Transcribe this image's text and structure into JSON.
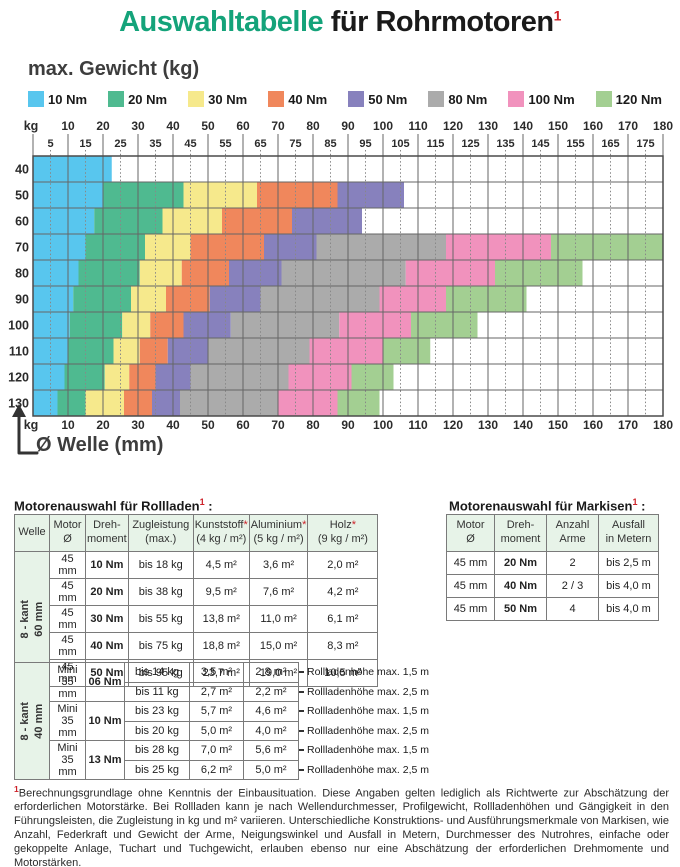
{
  "title": {
    "green": "Auswahltabelle",
    "rest": " für Rohrmotoren",
    "sup": "1"
  },
  "chart_data": {
    "type": "heatmap",
    "title": "max. Gewicht (kg)",
    "xlabel": "Ø Welle (mm)",
    "axis_unit_label": "kg",
    "x_range": [
      0,
      180
    ],
    "x_major_ticks": [
      10,
      20,
      30,
      40,
      50,
      60,
      70,
      80,
      90,
      100,
      110,
      120,
      130,
      140,
      150,
      160,
      170,
      180
    ],
    "x_minor_ticks": [
      5,
      15,
      25,
      35,
      45,
      55,
      65,
      75,
      85,
      95,
      105,
      115,
      125,
      135,
      145,
      155,
      165,
      175
    ],
    "y_rows_kg": [
      40,
      50,
      60,
      70,
      80,
      90,
      100,
      110,
      120,
      130
    ],
    "grid": "on",
    "legend_position": "top",
    "legend": [
      {
        "label": "10 Nm",
        "color": "#58c6ee"
      },
      {
        "label": "20 Nm",
        "color": "#4fba90"
      },
      {
        "label": "30 Nm",
        "color": "#f6e98c"
      },
      {
        "label": "40 Nm",
        "color": "#f0875c"
      },
      {
        "label": "50 Nm",
        "color": "#8781bd"
      },
      {
        "label": "80 Nm",
        "color": "#ababab"
      },
      {
        "label": "100 Nm",
        "color": "#f192bd"
      },
      {
        "label": "120 Nm",
        "color": "#a3cf92"
      }
    ],
    "rows": [
      {
        "kg": 40,
        "segments": [
          {
            "torque": "10 Nm",
            "from": 0,
            "to": 22.5
          }
        ]
      },
      {
        "kg": 50,
        "segments": [
          {
            "torque": "10 Nm",
            "from": 0,
            "to": 20
          },
          {
            "torque": "20 Nm",
            "from": 20,
            "to": 43
          },
          {
            "torque": "30 Nm",
            "from": 43,
            "to": 64
          },
          {
            "torque": "40 Nm",
            "from": 64,
            "to": 87
          },
          {
            "torque": "50 Nm",
            "from": 87,
            "to": 106
          }
        ]
      },
      {
        "kg": 60,
        "segments": [
          {
            "torque": "10 Nm",
            "from": 0,
            "to": 17.5
          },
          {
            "torque": "20 Nm",
            "from": 17.5,
            "to": 37
          },
          {
            "torque": "30 Nm",
            "from": 37,
            "to": 54
          },
          {
            "torque": "40 Nm",
            "from": 54,
            "to": 74
          },
          {
            "torque": "50 Nm",
            "from": 74,
            "to": 94
          }
        ]
      },
      {
        "kg": 70,
        "segments": [
          {
            "torque": "10 Nm",
            "from": 0,
            "to": 15
          },
          {
            "torque": "20 Nm",
            "from": 15,
            "to": 32
          },
          {
            "torque": "30 Nm",
            "from": 32,
            "to": 45
          },
          {
            "torque": "40 Nm",
            "from": 45,
            "to": 66
          },
          {
            "torque": "50 Nm",
            "from": 66,
            "to": 81
          },
          {
            "torque": "80 Nm",
            "from": 81,
            "to": 118
          },
          {
            "torque": "100 Nm",
            "from": 118,
            "to": 148
          },
          {
            "torque": "120 Nm",
            "from": 148,
            "to": 180
          }
        ]
      },
      {
        "kg": 80,
        "segments": [
          {
            "torque": "10 Nm",
            "from": 0,
            "to": 13
          },
          {
            "torque": "20 Nm",
            "from": 13,
            "to": 30.5
          },
          {
            "torque": "30 Nm",
            "from": 30.5,
            "to": 42.5
          },
          {
            "torque": "40 Nm",
            "from": 42.5,
            "to": 56
          },
          {
            "torque": "50 Nm",
            "from": 56,
            "to": 71
          },
          {
            "torque": "80 Nm",
            "from": 71,
            "to": 106.5
          },
          {
            "torque": "100 Nm",
            "from": 106.5,
            "to": 132
          },
          {
            "torque": "120 Nm",
            "from": 132,
            "to": 157
          }
        ]
      },
      {
        "kg": 90,
        "segments": [
          {
            "torque": "10 Nm",
            "from": 0,
            "to": 11.5
          },
          {
            "torque": "20 Nm",
            "from": 11.5,
            "to": 28
          },
          {
            "torque": "30 Nm",
            "from": 28,
            "to": 38
          },
          {
            "torque": "40 Nm",
            "from": 38,
            "to": 50.5
          },
          {
            "torque": "50 Nm",
            "from": 50.5,
            "to": 65
          },
          {
            "torque": "80 Nm",
            "from": 65,
            "to": 99
          },
          {
            "torque": "100 Nm",
            "from": 99,
            "to": 118
          },
          {
            "torque": "120 Nm",
            "from": 118,
            "to": 141
          }
        ]
      },
      {
        "kg": 100,
        "segments": [
          {
            "torque": "10 Nm",
            "from": 0,
            "to": 10.5
          },
          {
            "torque": "20 Nm",
            "from": 10.5,
            "to": 25.5
          },
          {
            "torque": "30 Nm",
            "from": 25.5,
            "to": 33.5
          },
          {
            "torque": "40 Nm",
            "from": 33.5,
            "to": 43
          },
          {
            "torque": "50 Nm",
            "from": 43,
            "to": 56.5
          },
          {
            "torque": "80 Nm",
            "from": 56.5,
            "to": 87.5
          },
          {
            "torque": "100 Nm",
            "from": 87.5,
            "to": 108
          },
          {
            "torque": "120 Nm",
            "from": 108,
            "to": 127
          }
        ]
      },
      {
        "kg": 110,
        "segments": [
          {
            "torque": "10 Nm",
            "from": 0,
            "to": 10
          },
          {
            "torque": "20 Nm",
            "from": 10,
            "to": 23
          },
          {
            "torque": "30 Nm",
            "from": 23,
            "to": 30.5
          },
          {
            "torque": "40 Nm",
            "from": 30.5,
            "to": 38.5
          },
          {
            "torque": "50 Nm",
            "from": 38.5,
            "to": 50
          },
          {
            "torque": "80 Nm",
            "from": 50,
            "to": 79
          },
          {
            "torque": "100 Nm",
            "from": 79,
            "to": 100
          },
          {
            "torque": "120 Nm",
            "from": 100,
            "to": 113.5
          }
        ]
      },
      {
        "kg": 120,
        "segments": [
          {
            "torque": "10 Nm",
            "from": 0,
            "to": 9
          },
          {
            "torque": "20 Nm",
            "from": 9,
            "to": 20.5
          },
          {
            "torque": "30 Nm",
            "from": 20.5,
            "to": 27.5
          },
          {
            "torque": "40 Nm",
            "from": 27.5,
            "to": 35
          },
          {
            "torque": "50 Nm",
            "from": 35,
            "to": 45
          },
          {
            "torque": "80 Nm",
            "from": 45,
            "to": 73
          },
          {
            "torque": "100 Nm",
            "from": 73,
            "to": 91
          },
          {
            "torque": "120 Nm",
            "from": 91,
            "to": 103
          }
        ]
      },
      {
        "kg": 130,
        "segments": [
          {
            "torque": "10 Nm",
            "from": 0,
            "to": 7
          },
          {
            "torque": "20 Nm",
            "from": 7,
            "to": 15
          },
          {
            "torque": "30 Nm",
            "from": 15,
            "to": 26
          },
          {
            "torque": "40 Nm",
            "from": 26,
            "to": 34
          },
          {
            "torque": "50 Nm",
            "from": 34,
            "to": 42
          },
          {
            "torque": "80 Nm",
            "from": 42,
            "to": 70
          },
          {
            "torque": "100 Nm",
            "from": 70,
            "to": 87
          },
          {
            "torque": "120 Nm",
            "from": 87,
            "to": 99
          }
        ]
      }
    ]
  },
  "rollladen": {
    "title": "Motorenauswahl für Rollladen",
    "title_sup": "1",
    "title_suffix": " :",
    "headers": [
      [
        "Welle"
      ],
      [
        "Motor",
        "Ø"
      ],
      [
        "Dreh-",
        "moment"
      ],
      [
        "Zugleistung",
        "(max.)"
      ],
      [
        "Kunststoff*",
        "(4 kg / m²)"
      ],
      [
        "Aluminium*",
        "(5 kg / m²)"
      ],
      [
        "Holz*",
        "(9 kg / m²)"
      ]
    ],
    "section_60": {
      "welle": [
        "8 - kant",
        "60 mm"
      ],
      "rows": [
        [
          "45 mm",
          "10 Nm",
          "bis 18 kg",
          "4,5 m²",
          "3,6 m²",
          "2,0 m²"
        ],
        [
          "45 mm",
          "20 Nm",
          "bis 38 kg",
          "9,5 m²",
          "7,6 m²",
          "4,2 m²"
        ],
        [
          "45 mm",
          "30 Nm",
          "bis 55 kg",
          "13,8 m²",
          "11,0 m²",
          "6,1 m²"
        ],
        [
          "45 mm",
          "40 Nm",
          "bis 75 kg",
          "18,8 m²",
          "15,0 m²",
          "8,3 m²"
        ],
        [
          "45 mm",
          "50 Nm",
          "bis 95 kg",
          "23,7 m²",
          "19,0 m²",
          "10,5 m²"
        ]
      ]
    },
    "section_40": {
      "welle": [
        "8 - kant",
        "40 mm"
      ],
      "groups": [
        {
          "motor": [
            "Mini",
            "35 mm"
          ],
          "torque": "06 Nm",
          "rows": [
            [
              "bis 14 kg",
              "3,5 m²",
              "2,8 m²",
              "Rollladenhöhe max. 1,5 m"
            ],
            [
              "bis 11 kg",
              "2,7 m²",
              "2,2 m²",
              "Rollladenhöhe max. 2,5 m"
            ]
          ]
        },
        {
          "motor": [
            "Mini",
            "35 mm"
          ],
          "torque": "10 Nm",
          "rows": [
            [
              "bis 23 kg",
              "5,7 m²",
              "4,6 m²",
              "Rollladenhöhe max. 1,5 m"
            ],
            [
              "bis 20 kg",
              "5,0 m²",
              "4,0 m²",
              "Rollladenhöhe max. 2,5 m"
            ]
          ]
        },
        {
          "motor": [
            "Mini",
            "35 mm"
          ],
          "torque": "13 Nm",
          "rows": [
            [
              "bis 28 kg",
              "7,0 m²",
              "5,6 m²",
              "Rollladenhöhe max. 1,5 m"
            ],
            [
              "bis 25 kg",
              "6,2 m²",
              "5,0 m²",
              "Rollladenhöhe max. 2,5 m"
            ]
          ]
        }
      ]
    }
  },
  "markisen": {
    "title": "Motorenauswahl für Markisen",
    "title_sup": "1",
    "title_suffix": " :",
    "headers": [
      [
        "Motor",
        "Ø"
      ],
      [
        "Dreh-",
        "moment"
      ],
      [
        "Anzahl",
        "Arme"
      ],
      [
        "Ausfall",
        "in Metern"
      ]
    ],
    "rows": [
      [
        "45 mm",
        "20 Nm",
        "2",
        "bis 2,5 m"
      ],
      [
        "45 mm",
        "40 Nm",
        "2 / 3",
        "bis 4,0 m"
      ],
      [
        "45 mm",
        "50 Nm",
        "4",
        "bis 4,0 m"
      ]
    ]
  },
  "footnote": {
    "sup": "1",
    "text": "Berechnungsgrundlage ohne Kenntnis der Einbausituation. Diese Angaben gelten lediglich als Richtwerte zur Abschätzung der erforderlichen Motorstärke. Bei Rollladen kann je nach Wellendurchmesser, Profilgewicht, Rollladenhöhen und Gängigkeit in den Führungsleisten, die Zugleistung in kg und m² variieren. Unterschiedliche Konstruktions- und Ausführungsmerkmale von Markisen, wie Anzahl, Federkraft und Gewicht der Arme, Neigungswinkel und Ausfall in Metern, Durchmesser des Nutrohres, einfache oder gekoppelte Anlage, Tuchart und Tuchgewicht, erlauben ebenso nur eine Abschätzung der erforderlichen Drehmomente und Motorstärken."
  },
  "colors": {
    "accent_green": "#14a37a",
    "accent_red": "#cc2128",
    "header_mint": "#e7f3e8"
  }
}
